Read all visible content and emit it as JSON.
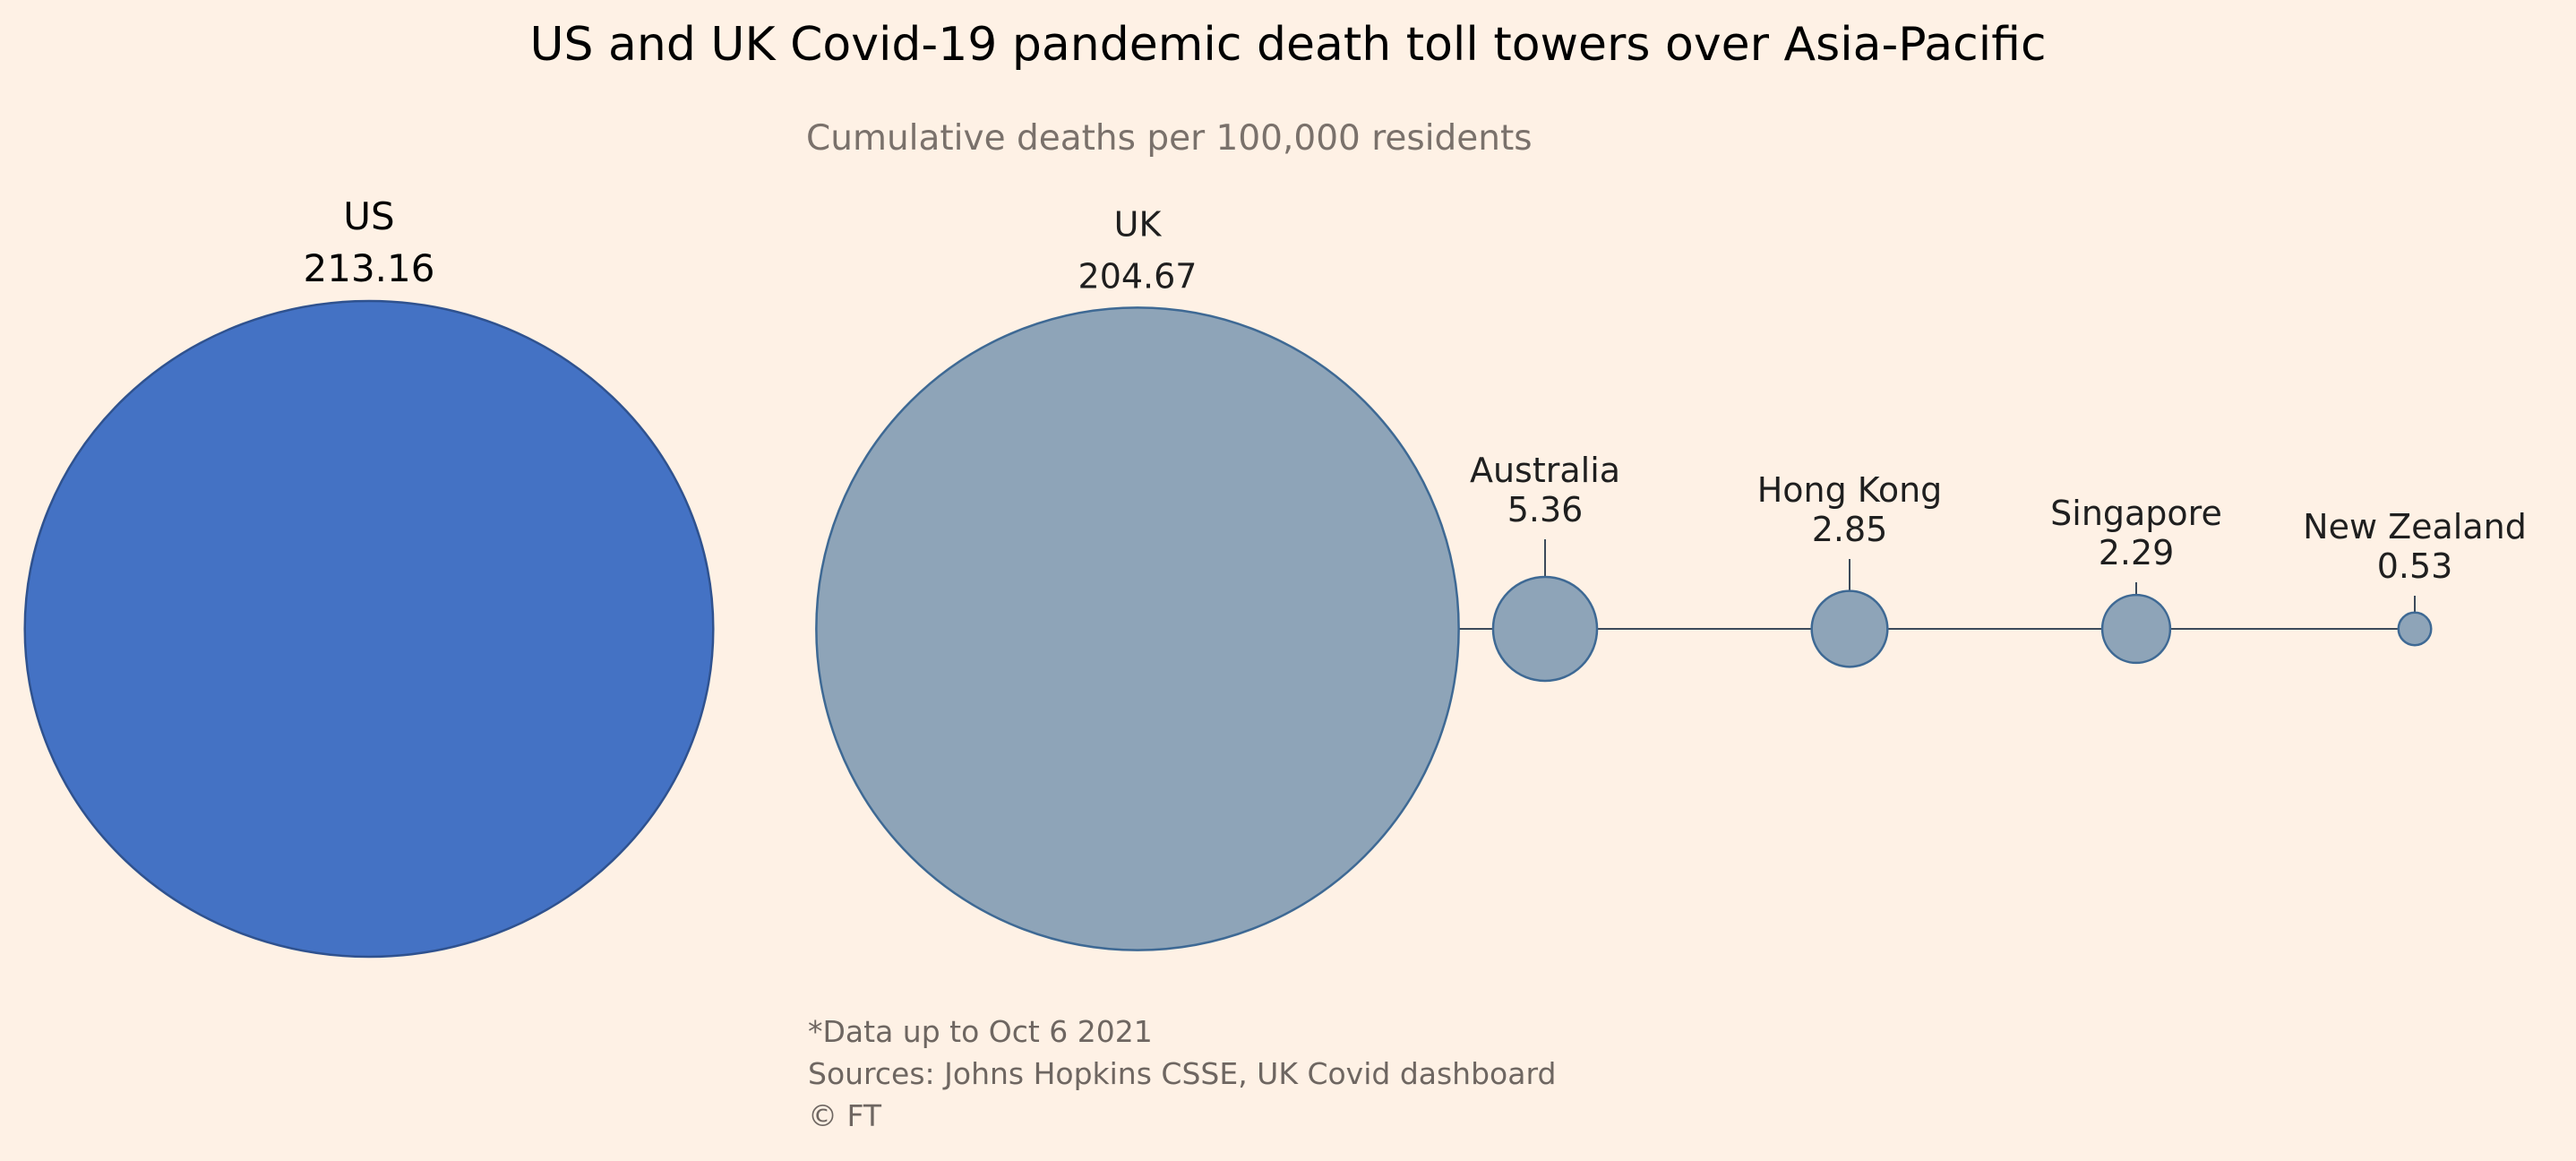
{
  "chart_data": {
    "type": "bubble",
    "title": "US and  UK Covid-19 pandemic death toll towers over Asia-Pacific",
    "subtitle": "Cumulative deaths per 100,000 residents",
    "series": [
      {
        "name": "US",
        "value": 213.16,
        "value_label": "213.16"
      },
      {
        "name": "UK",
        "value": 204.67,
        "value_label": "204.67"
      },
      {
        "name": "Australia",
        "value": 5.36,
        "value_label": "5.36"
      },
      {
        "name": "Hong Kong",
        "value": 2.85,
        "value_label": "2.85"
      },
      {
        "name": "Singapore",
        "value": 2.29,
        "value_label": "2.29"
      },
      {
        "name": "New Zealand",
        "value": 0.53,
        "value_label": "0.53"
      }
    ],
    "colors": {
      "highlight": "#4472C4",
      "highlight_stroke": "#2F528F",
      "others": "#8EA4B8",
      "others_stroke": "#3E6994",
      "connector": "#3C4A5A"
    },
    "footnotes": [
      "*Data up to Oct 6 2021",
      "Sources: Johns Hopkins CSSE, UK Covid dashboard",
      "© FT"
    ]
  }
}
